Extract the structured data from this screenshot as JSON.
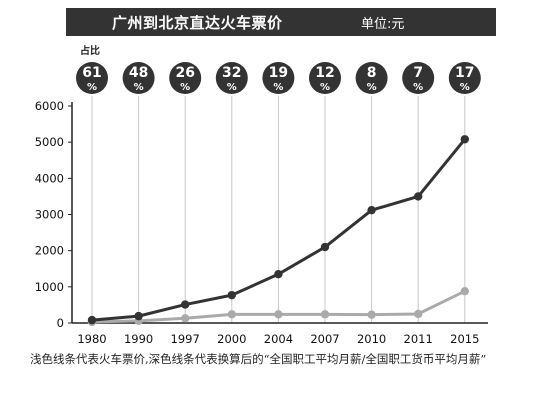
{
  "header": {
    "title": "广州到北京直达火车票价",
    "unit": "单位:元"
  },
  "share": {
    "label": "占比",
    "unit_symbol": "%",
    "values": [
      "61",
      "48",
      "26",
      "32",
      "19",
      "12",
      "8",
      "7",
      "17"
    ]
  },
  "caption": "浅色线条代表火车票价,深色线条代表换算后的“全国职工平均月薪/全国职工货币平均月薪”",
  "colors": {
    "dark_line": "#333333",
    "light_line": "#aaaaaa",
    "badge": "#333333",
    "title_bar": "#333333"
  },
  "chart_data": {
    "type": "line",
    "categories": [
      "1980",
      "1990",
      "1997",
      "2000",
      "2004",
      "2007",
      "2010",
      "2011",
      "2015"
    ],
    "ylim": [
      0,
      6000
    ],
    "yticks": [
      "0",
      "1000",
      "2000",
      "3000",
      "4000",
      "5000",
      "6000"
    ],
    "grid": "vertical",
    "series": [
      {
        "style": "dark",
        "values": [
          80,
          190,
          510,
          770,
          1350,
          2100,
          3120,
          3500,
          5080
        ]
      },
      {
        "style": "light",
        "values": [
          30,
          60,
          130,
          240,
          240,
          240,
          230,
          250,
          880
        ]
      }
    ]
  }
}
